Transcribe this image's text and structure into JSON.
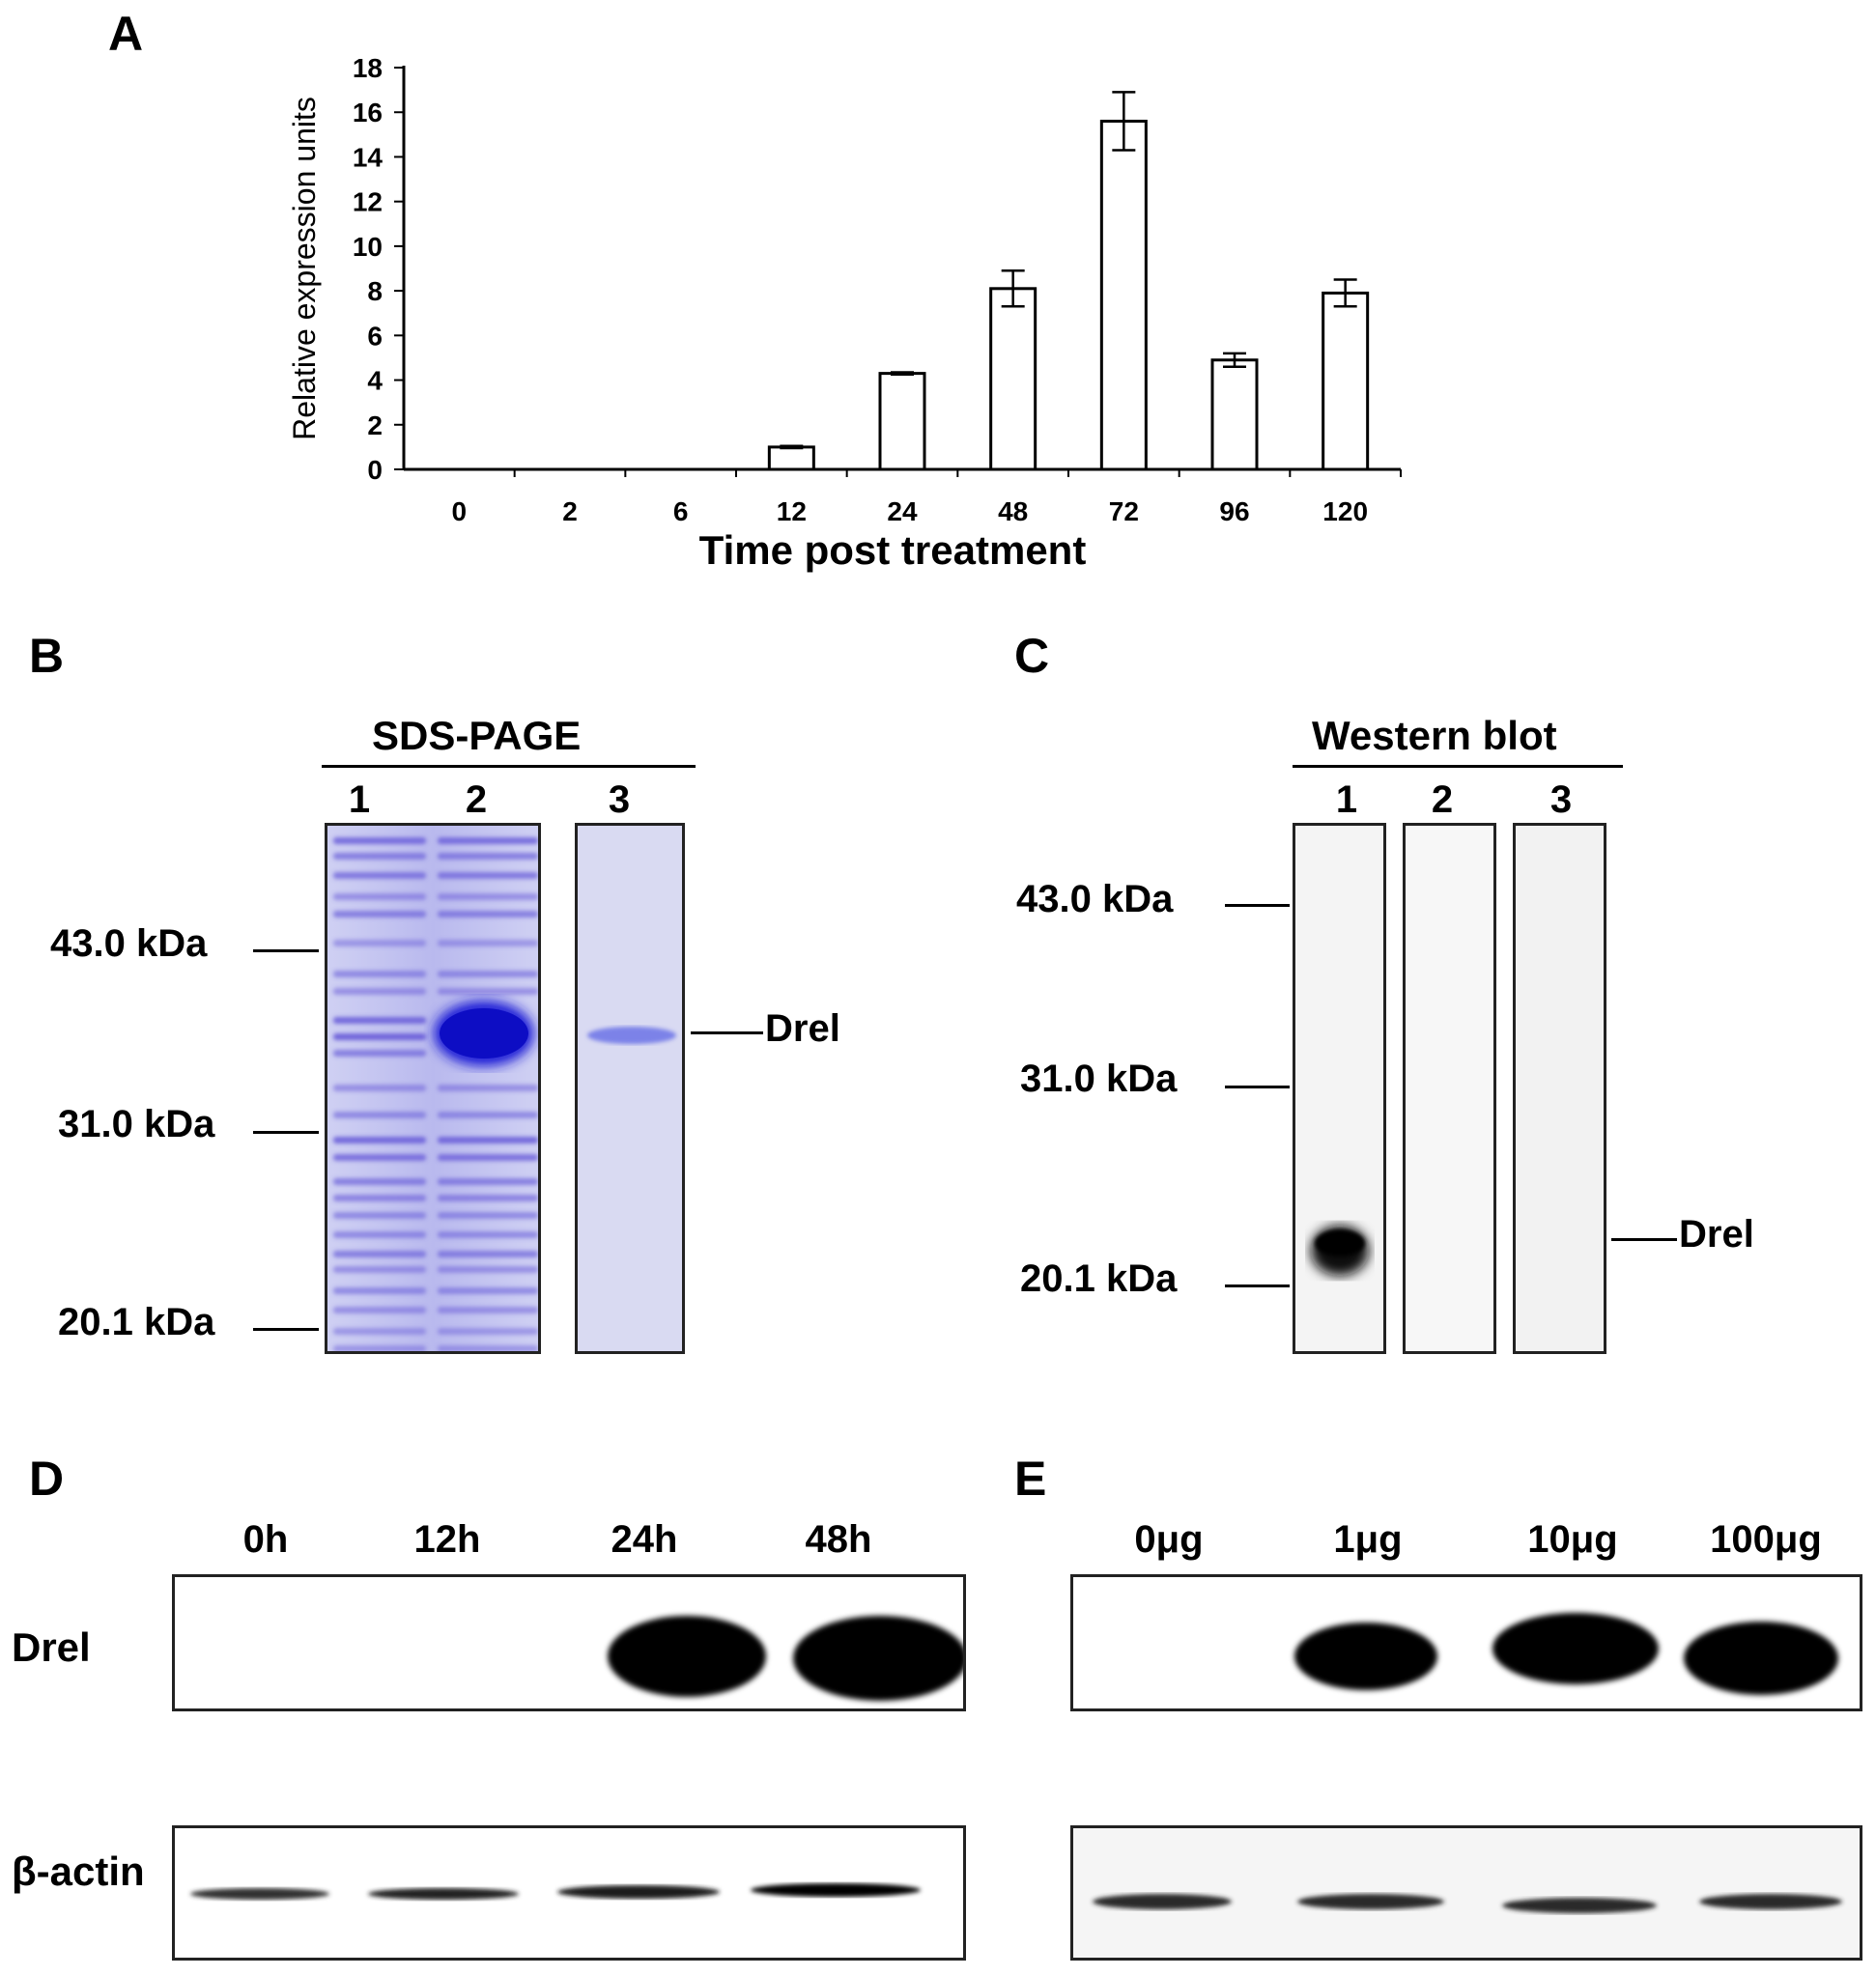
{
  "panel_a": {
    "letter": "A",
    "chart_data": {
      "type": "bar",
      "categories": [
        "0",
        "2",
        "6",
        "12",
        "24",
        "48",
        "72",
        "96",
        "120"
      ],
      "values": [
        0,
        0,
        0,
        1.0,
        4.3,
        8.1,
        15.6,
        4.9,
        7.9
      ],
      "errors": [
        0,
        0,
        0,
        0.05,
        0.05,
        0.8,
        1.3,
        0.3,
        0.6
      ],
      "xlabel": "Time post treatment",
      "ylabel": "Relative expression units",
      "ylim": [
        0,
        18
      ],
      "yticks": [
        "0",
        "2",
        "4",
        "6",
        "8",
        "10",
        "12",
        "14",
        "16",
        "18"
      ],
      "grid": false
    }
  },
  "panel_b": {
    "letter": "B",
    "header": "SDS-PAGE",
    "lanes": [
      "1",
      "2",
      "3"
    ],
    "markers": [
      "43.0 kDa",
      "31.0 kDa",
      "20.1 kDa"
    ],
    "band_label": "Drel",
    "gel_color": "#6b5fd9"
  },
  "panel_c": {
    "letter": "C",
    "header": "Western blot",
    "lanes": [
      "1",
      "2",
      "3"
    ],
    "markers": [
      "43.0 kDa",
      "31.0 kDa",
      "20.1 kDa"
    ],
    "band_label": "Drel"
  },
  "panel_d": {
    "letter": "D",
    "timepoints": [
      "0h",
      "12h",
      "24h",
      "48h"
    ],
    "row_labels": [
      "Drel",
      "β-actin"
    ]
  },
  "panel_e": {
    "letter": "E",
    "doses": [
      "0μg",
      "1μg",
      "10μg",
      "100μg"
    ]
  }
}
